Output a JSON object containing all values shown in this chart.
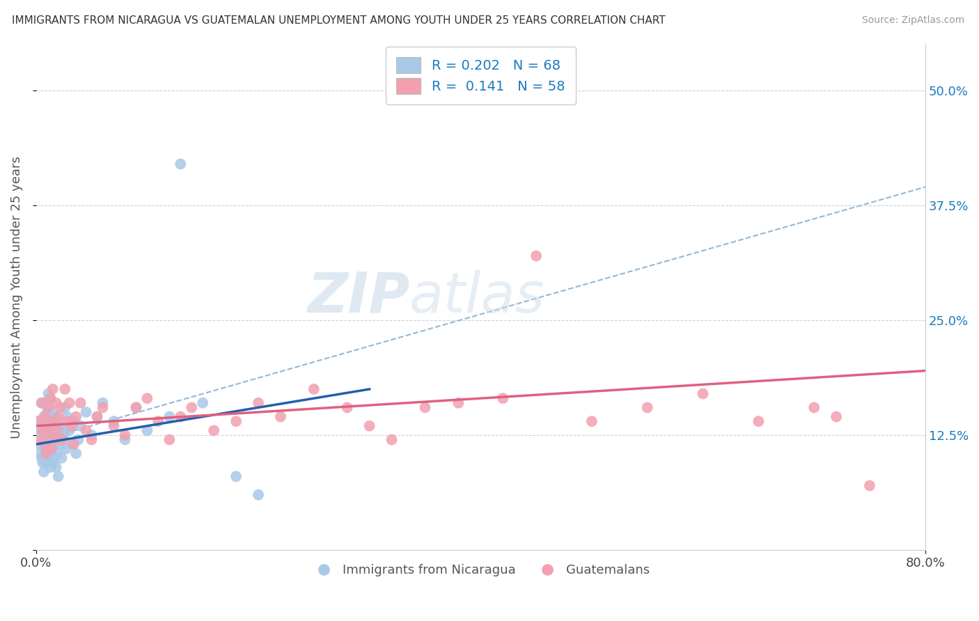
{
  "title": "IMMIGRANTS FROM NICARAGUA VS GUATEMALAN UNEMPLOYMENT AMONG YOUTH UNDER 25 YEARS CORRELATION CHART",
  "source": "Source: ZipAtlas.com",
  "ylabel": "Unemployment Among Youth under 25 years",
  "xlim": [
    0.0,
    0.8
  ],
  "ylim": [
    0.0,
    0.55
  ],
  "ytick_positions": [
    0.0,
    0.125,
    0.25,
    0.375,
    0.5
  ],
  "ytick_labels": [
    "",
    "12.5%",
    "25.0%",
    "37.5%",
    "50.0%"
  ],
  "blue_color": "#a8c8e8",
  "pink_color": "#f2a0b0",
  "blue_line_color": "#2060b0",
  "pink_line_color": "#e06080",
  "dashed_line_color": "#90b8d8",
  "watermark_zip": "ZIP",
  "watermark_atlas": "atlas",
  "blue_scatter_x": [
    0.002,
    0.003,
    0.004,
    0.004,
    0.005,
    0.005,
    0.006,
    0.006,
    0.007,
    0.007,
    0.008,
    0.008,
    0.008,
    0.009,
    0.009,
    0.01,
    0.01,
    0.01,
    0.011,
    0.011,
    0.011,
    0.012,
    0.012,
    0.013,
    0.013,
    0.013,
    0.014,
    0.014,
    0.014,
    0.015,
    0.015,
    0.016,
    0.016,
    0.017,
    0.017,
    0.018,
    0.018,
    0.019,
    0.019,
    0.02,
    0.02,
    0.021,
    0.022,
    0.023,
    0.024,
    0.025,
    0.026,
    0.027,
    0.028,
    0.03,
    0.032,
    0.034,
    0.036,
    0.038,
    0.04,
    0.045,
    0.05,
    0.055,
    0.06,
    0.07,
    0.08,
    0.09,
    0.1,
    0.12,
    0.13,
    0.15,
    0.18,
    0.2
  ],
  "blue_scatter_y": [
    0.13,
    0.115,
    0.105,
    0.14,
    0.1,
    0.16,
    0.095,
    0.125,
    0.085,
    0.145,
    0.11,
    0.13,
    0.16,
    0.095,
    0.12,
    0.135,
    0.15,
    0.1,
    0.115,
    0.145,
    0.17,
    0.105,
    0.125,
    0.09,
    0.14,
    0.165,
    0.11,
    0.13,
    0.15,
    0.095,
    0.12,
    0.1,
    0.135,
    0.115,
    0.145,
    0.09,
    0.125,
    0.105,
    0.14,
    0.08,
    0.12,
    0.135,
    0.115,
    0.1,
    0.13,
    0.125,
    0.155,
    0.11,
    0.145,
    0.13,
    0.115,
    0.14,
    0.105,
    0.12,
    0.135,
    0.15,
    0.125,
    0.145,
    0.16,
    0.14,
    0.12,
    0.155,
    0.13,
    0.145,
    0.42,
    0.16,
    0.08,
    0.06
  ],
  "pink_scatter_x": [
    0.002,
    0.003,
    0.005,
    0.006,
    0.007,
    0.008,
    0.009,
    0.01,
    0.011,
    0.012,
    0.013,
    0.014,
    0.015,
    0.016,
    0.017,
    0.018,
    0.019,
    0.02,
    0.022,
    0.024,
    0.026,
    0.028,
    0.03,
    0.032,
    0.034,
    0.036,
    0.04,
    0.045,
    0.05,
    0.055,
    0.06,
    0.07,
    0.08,
    0.09,
    0.1,
    0.11,
    0.12,
    0.13,
    0.14,
    0.16,
    0.18,
    0.2,
    0.22,
    0.25,
    0.28,
    0.3,
    0.32,
    0.35,
    0.38,
    0.42,
    0.45,
    0.5,
    0.55,
    0.6,
    0.65,
    0.7,
    0.72,
    0.75
  ],
  "pink_scatter_y": [
    0.14,
    0.12,
    0.16,
    0.13,
    0.115,
    0.145,
    0.105,
    0.135,
    0.155,
    0.125,
    0.165,
    0.11,
    0.175,
    0.14,
    0.12,
    0.16,
    0.13,
    0.145,
    0.155,
    0.12,
    0.175,
    0.14,
    0.16,
    0.135,
    0.115,
    0.145,
    0.16,
    0.13,
    0.12,
    0.145,
    0.155,
    0.135,
    0.125,
    0.155,
    0.165,
    0.14,
    0.12,
    0.145,
    0.155,
    0.13,
    0.14,
    0.16,
    0.145,
    0.175,
    0.155,
    0.135,
    0.12,
    0.155,
    0.16,
    0.165,
    0.32,
    0.14,
    0.155,
    0.17,
    0.14,
    0.155,
    0.145,
    0.07
  ],
  "blue_line_x": [
    0.0,
    0.3
  ],
  "blue_line_y_start": 0.115,
  "blue_line_y_end": 0.175,
  "pink_line_x_start": 0.0,
  "pink_line_x_end": 0.8,
  "pink_line_y_start": 0.135,
  "pink_line_y_end": 0.195,
  "dash_line_x_start": 0.0,
  "dash_line_x_end": 0.8,
  "dash_line_y_start": 0.118,
  "dash_line_y_end": 0.395
}
